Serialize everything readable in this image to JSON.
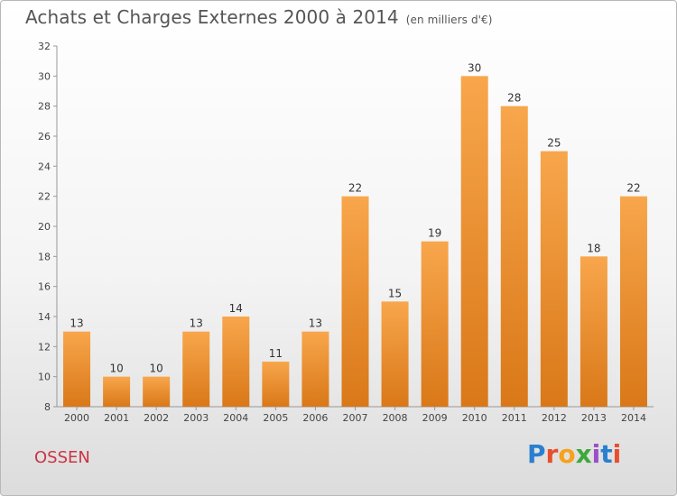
{
  "title": "Achats et Charges Externes 2000 à 2014",
  "unit": "(en milliers d'€)",
  "town": "OSSEN",
  "logo": {
    "letters": [
      "P",
      "r",
      "o",
      "x",
      "i",
      "t",
      "i"
    ],
    "colors": [
      "#2a7fd0",
      "#e84e2c",
      "#f6a21b",
      "#3da83c",
      "#9b4fc8",
      "#2a7fd0",
      "#e84e2c"
    ]
  },
  "colors": {
    "bar_top": "#f8a64c",
    "bar_bottom": "#d97818",
    "town": "#cc3344",
    "title": "#555555"
  },
  "chart_data": {
    "type": "bar",
    "categories": [
      "2000",
      "2001",
      "2002",
      "2003",
      "2004",
      "2005",
      "2006",
      "2007",
      "2008",
      "2009",
      "2010",
      "2011",
      "2012",
      "2013",
      "2014"
    ],
    "values": [
      13,
      10,
      10,
      13,
      14,
      11,
      13,
      22,
      15,
      19,
      30,
      28,
      25,
      18,
      22
    ],
    "ylim": [
      8,
      32
    ],
    "yticks": [
      8,
      10,
      12,
      14,
      16,
      18,
      20,
      22,
      24,
      26,
      28,
      30,
      32
    ],
    "xlabel": "",
    "ylabel": "",
    "grid": false
  }
}
